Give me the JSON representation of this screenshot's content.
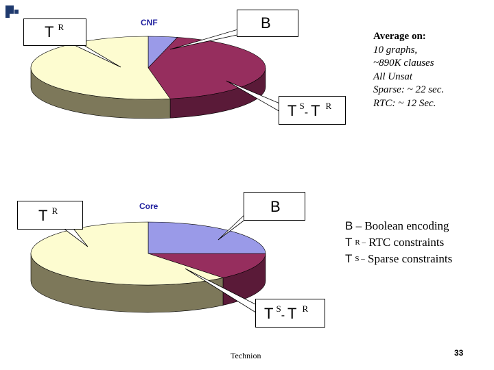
{
  "chart_data": [
    {
      "type": "pie",
      "title": "CNF",
      "categories": [
        "B",
        "TS-TR",
        "TR"
      ],
      "values": [
        4,
        43,
        53
      ],
      "colors": [
        "#9a9ae8",
        "#962e5e",
        "#fdfcd0"
      ],
      "side_colors": [
        "#5b5ba8",
        "#5a1a38",
        "#7d785a"
      ]
    },
    {
      "type": "pie",
      "title": "Core",
      "categories": [
        "B",
        "TS-TR",
        "TR"
      ],
      "values": [
        25,
        14,
        61
      ],
      "colors": [
        "#9a9ae8",
        "#962e5e",
        "#fdfcd0"
      ],
      "side_colors": [
        "#5b5ba8",
        "#5a1a38",
        "#7d785a"
      ]
    }
  ],
  "callouts": {
    "top_tr": {
      "main": "T",
      "sup": "R"
    },
    "top_b": {
      "main": "B"
    },
    "top_ts": {
      "main1": "T",
      "sup1": "S",
      "dash": "-",
      "main2": "T",
      "sup2": "R"
    },
    "bot_tr": {
      "main": "T",
      "sup": "R"
    },
    "bot_b": {
      "main": "B"
    },
    "bot_ts": {
      "main1": "T",
      "sup1": "S",
      "dash": "-",
      "main2": "T",
      "sup2": "R"
    }
  },
  "notes": {
    "line1": "Average on:",
    "line2": "10 graphs,",
    "line3": "~890K clauses",
    "line4": "All Unsat",
    "line5": "Sparse: ~ 22 sec.",
    "line6": "RTC: ~ 12 Sec."
  },
  "legend": {
    "b_sym": "B",
    "b_text": " – Boolean encoding",
    "r_sym": "T",
    "r_sub": "R –",
    "r_text": " RTC constraints",
    "s_sym": "T",
    "s_sub": "S –",
    "s_text": " Sparse constraints"
  },
  "footer": {
    "org": "Technion",
    "page": "33"
  }
}
